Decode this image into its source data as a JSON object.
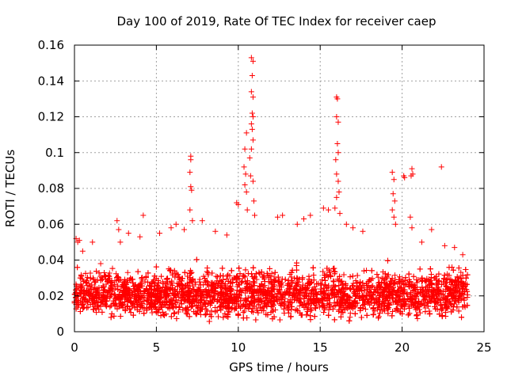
{
  "chart_data": {
    "type": "scatter",
    "title": "Day 100 of 2019, Rate Of TEC Index for receiver caep",
    "xlabel": "GPS time / hours",
    "ylabel": "ROTI / TECUs",
    "xlim": [
      0,
      25
    ],
    "ylim": [
      0,
      0.16
    ],
    "x_ticks": [
      0,
      5,
      10,
      15,
      20,
      25
    ],
    "x_tick_labels": [
      "0",
      "5",
      "10",
      "15",
      "20",
      "25"
    ],
    "y_ticks": [
      0,
      0.02,
      0.04,
      0.06,
      0.08,
      0.1,
      0.12,
      0.14,
      0.16
    ],
    "y_tick_labels": [
      "0",
      "0.02",
      "0.04",
      "0.06",
      "0.08",
      "0.1",
      "0.12",
      "0.14",
      "0.16"
    ],
    "grid": true,
    "marker": "plus",
    "marker_color": "#ff0000",
    "series": [
      {
        "name": "ROTI",
        "description": "dense ROTI samples over the day, baseline about 0.01 to 0.04 TECU/min",
        "x_range": [
          0,
          24
        ],
        "baseline_low": 0.005,
        "baseline_high": 0.04,
        "points": [
          [
            0.1,
            0.052
          ],
          [
            0.2,
            0.05
          ],
          [
            0.3,
            0.051
          ],
          [
            0.5,
            0.045
          ],
          [
            1.1,
            0.05
          ],
          [
            1.6,
            0.038
          ],
          [
            2.6,
            0.062
          ],
          [
            2.7,
            0.057
          ],
          [
            2.8,
            0.05
          ],
          [
            3.3,
            0.055
          ],
          [
            4.2,
            0.065
          ],
          [
            4.0,
            0.053
          ],
          [
            5.2,
            0.055
          ],
          [
            5.9,
            0.058
          ],
          [
            6.2,
            0.06
          ],
          [
            6.7,
            0.057
          ],
          [
            7.1,
            0.098
          ],
          [
            7.1,
            0.096
          ],
          [
            7.05,
            0.089
          ],
          [
            7.1,
            0.081
          ],
          [
            7.15,
            0.079
          ],
          [
            7.05,
            0.068
          ],
          [
            7.2,
            0.062
          ],
          [
            7.8,
            0.062
          ],
          [
            8.6,
            0.056
          ],
          [
            9.3,
            0.054
          ],
          [
            9.9,
            0.072
          ],
          [
            10.0,
            0.071
          ],
          [
            10.4,
            0.102
          ],
          [
            10.5,
            0.111
          ],
          [
            10.35,
            0.092
          ],
          [
            10.45,
            0.088
          ],
          [
            10.4,
            0.082
          ],
          [
            10.5,
            0.078
          ],
          [
            10.55,
            0.068
          ],
          [
            10.8,
            0.153
          ],
          [
            10.9,
            0.151
          ],
          [
            10.85,
            0.143
          ],
          [
            10.8,
            0.134
          ],
          [
            10.9,
            0.131
          ],
          [
            10.85,
            0.122
          ],
          [
            10.9,
            0.12
          ],
          [
            10.8,
            0.116
          ],
          [
            10.85,
            0.113
          ],
          [
            10.9,
            0.107
          ],
          [
            10.8,
            0.102
          ],
          [
            10.7,
            0.097
          ],
          [
            10.75,
            0.087
          ],
          [
            10.9,
            0.084
          ],
          [
            10.95,
            0.073
          ],
          [
            11.0,
            0.065
          ],
          [
            12.4,
            0.064
          ],
          [
            12.7,
            0.065
          ],
          [
            13.6,
            0.06
          ],
          [
            14.0,
            0.063
          ],
          [
            14.4,
            0.065
          ],
          [
            15.2,
            0.069
          ],
          [
            15.5,
            0.068
          ],
          [
            16.0,
            0.131
          ],
          [
            16.05,
            0.13
          ],
          [
            16.0,
            0.12
          ],
          [
            16.1,
            0.117
          ],
          [
            16.05,
            0.105
          ],
          [
            16.1,
            0.1
          ],
          [
            15.95,
            0.096
          ],
          [
            16.0,
            0.088
          ],
          [
            16.1,
            0.084
          ],
          [
            16.15,
            0.078
          ],
          [
            16.0,
            0.075
          ],
          [
            15.9,
            0.069
          ],
          [
            16.2,
            0.066
          ],
          [
            16.6,
            0.06
          ],
          [
            17.0,
            0.058
          ],
          [
            17.6,
            0.056
          ],
          [
            19.4,
            0.089
          ],
          [
            19.5,
            0.085
          ],
          [
            19.45,
            0.077
          ],
          [
            19.55,
            0.073
          ],
          [
            19.4,
            0.068
          ],
          [
            19.5,
            0.064
          ],
          [
            19.6,
            0.06
          ],
          [
            20.1,
            0.087
          ],
          [
            20.15,
            0.086
          ],
          [
            20.6,
            0.091
          ],
          [
            20.65,
            0.088
          ],
          [
            20.55,
            0.087
          ],
          [
            20.5,
            0.064
          ],
          [
            20.6,
            0.058
          ],
          [
            21.2,
            0.05
          ],
          [
            21.8,
            0.057
          ],
          [
            22.4,
            0.092
          ],
          [
            22.6,
            0.048
          ],
          [
            23.2,
            0.047
          ],
          [
            23.7,
            0.043
          ]
        ]
      }
    ]
  }
}
